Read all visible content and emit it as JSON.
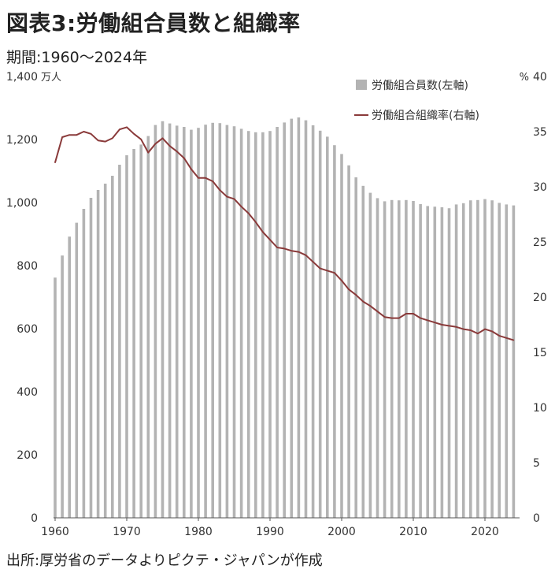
{
  "header": {
    "title": "図表3:労働組合員数と組織率",
    "period": "期間:1960〜2024年"
  },
  "footer": {
    "source": "出所:厚労省のデータよりピクテ・ジャパンが作成"
  },
  "colors": {
    "bars": "#b3b3b3",
    "line": "#8a3a3a",
    "axis": "#555555"
  },
  "chart_data": {
    "type": "bar+line",
    "title": "",
    "left_axis": {
      "unit_label": "万人",
      "min": 0,
      "max": 1400,
      "ticks": [
        0,
        200,
        400,
        600,
        800,
        1000,
        1200,
        1400
      ],
      "tick_labels": [
        "0",
        "200",
        "400",
        "600",
        "800",
        "1,000",
        "1,200",
        "1,400"
      ]
    },
    "right_axis": {
      "unit_label": "%",
      "min": 0,
      "max": 40,
      "ticks": [
        0,
        5,
        10,
        15,
        20,
        25,
        30,
        35,
        40
      ],
      "tick_labels": [
        "0",
        "5",
        "10",
        "15",
        "20",
        "25",
        "30",
        "35",
        "40"
      ]
    },
    "x_axis": {
      "ticks": [
        1960,
        1970,
        1980,
        1990,
        2000,
        2010,
        2020
      ],
      "tick_labels": [
        "1960",
        "1970",
        "1980",
        "1990",
        "2000",
        "2010",
        "2020"
      ]
    },
    "legend": {
      "placement": "top-right",
      "items": [
        "労働組合員数(左軸)",
        "労働組合組織率(右軸)"
      ]
    },
    "years": [
      1960,
      1961,
      1962,
      1963,
      1964,
      1965,
      1966,
      1967,
      1968,
      1969,
      1970,
      1971,
      1972,
      1973,
      1974,
      1975,
      1976,
      1977,
      1978,
      1979,
      1980,
      1981,
      1982,
      1983,
      1984,
      1985,
      1986,
      1987,
      1988,
      1989,
      1990,
      1991,
      1992,
      1993,
      1994,
      1995,
      1996,
      1997,
      1998,
      1999,
      2000,
      2001,
      2002,
      2003,
      2004,
      2005,
      2006,
      2007,
      2008,
      2009,
      2010,
      2011,
      2012,
      2013,
      2014,
      2015,
      2016,
      2017,
      2018,
      2019,
      2020,
      2021,
      2022,
      2023,
      2024
    ],
    "series": [
      {
        "name": "労働組合員数(左軸)",
        "axis": "left",
        "kind": "bar",
        "values": [
          762,
          832,
          892,
          936,
          980,
          1015,
          1040,
          1060,
          1085,
          1120,
          1150,
          1170,
          1184,
          1211,
          1246,
          1258,
          1251,
          1244,
          1240,
          1231,
          1237,
          1247,
          1253,
          1252,
          1246,
          1242,
          1234,
          1227,
          1223,
          1223,
          1227,
          1240,
          1254,
          1266,
          1270,
          1261,
          1245,
          1228,
          1209,
          1182,
          1154,
          1118,
          1080,
          1053,
          1031,
          1014,
          1004,
          1008,
          1007,
          1008,
          1005,
          995,
          989,
          987,
          985,
          982,
          994,
          998,
          1007,
          1008,
          1011,
          1007,
          999,
          994,
          991
        ]
      },
      {
        "name": "労働組合組織率(右軸)",
        "axis": "right",
        "kind": "line",
        "values": [
          32.2,
          34.5,
          34.7,
          34.7,
          35.0,
          34.8,
          34.2,
          34.1,
          34.4,
          35.2,
          35.4,
          34.8,
          34.3,
          33.1,
          33.9,
          34.4,
          33.7,
          33.2,
          32.6,
          31.6,
          30.8,
          30.8,
          30.5,
          29.7,
          29.1,
          28.9,
          28.2,
          27.6,
          26.8,
          25.9,
          25.2,
          24.5,
          24.4,
          24.2,
          24.1,
          23.8,
          23.2,
          22.6,
          22.4,
          22.2,
          21.5,
          20.7,
          20.2,
          19.6,
          19.2,
          18.7,
          18.2,
          18.1,
          18.1,
          18.5,
          18.5,
          18.1,
          17.9,
          17.7,
          17.5,
          17.4,
          17.3,
          17.1,
          17.0,
          16.7,
          17.1,
          16.9,
          16.5,
          16.3,
          16.1
        ]
      }
    ]
  }
}
